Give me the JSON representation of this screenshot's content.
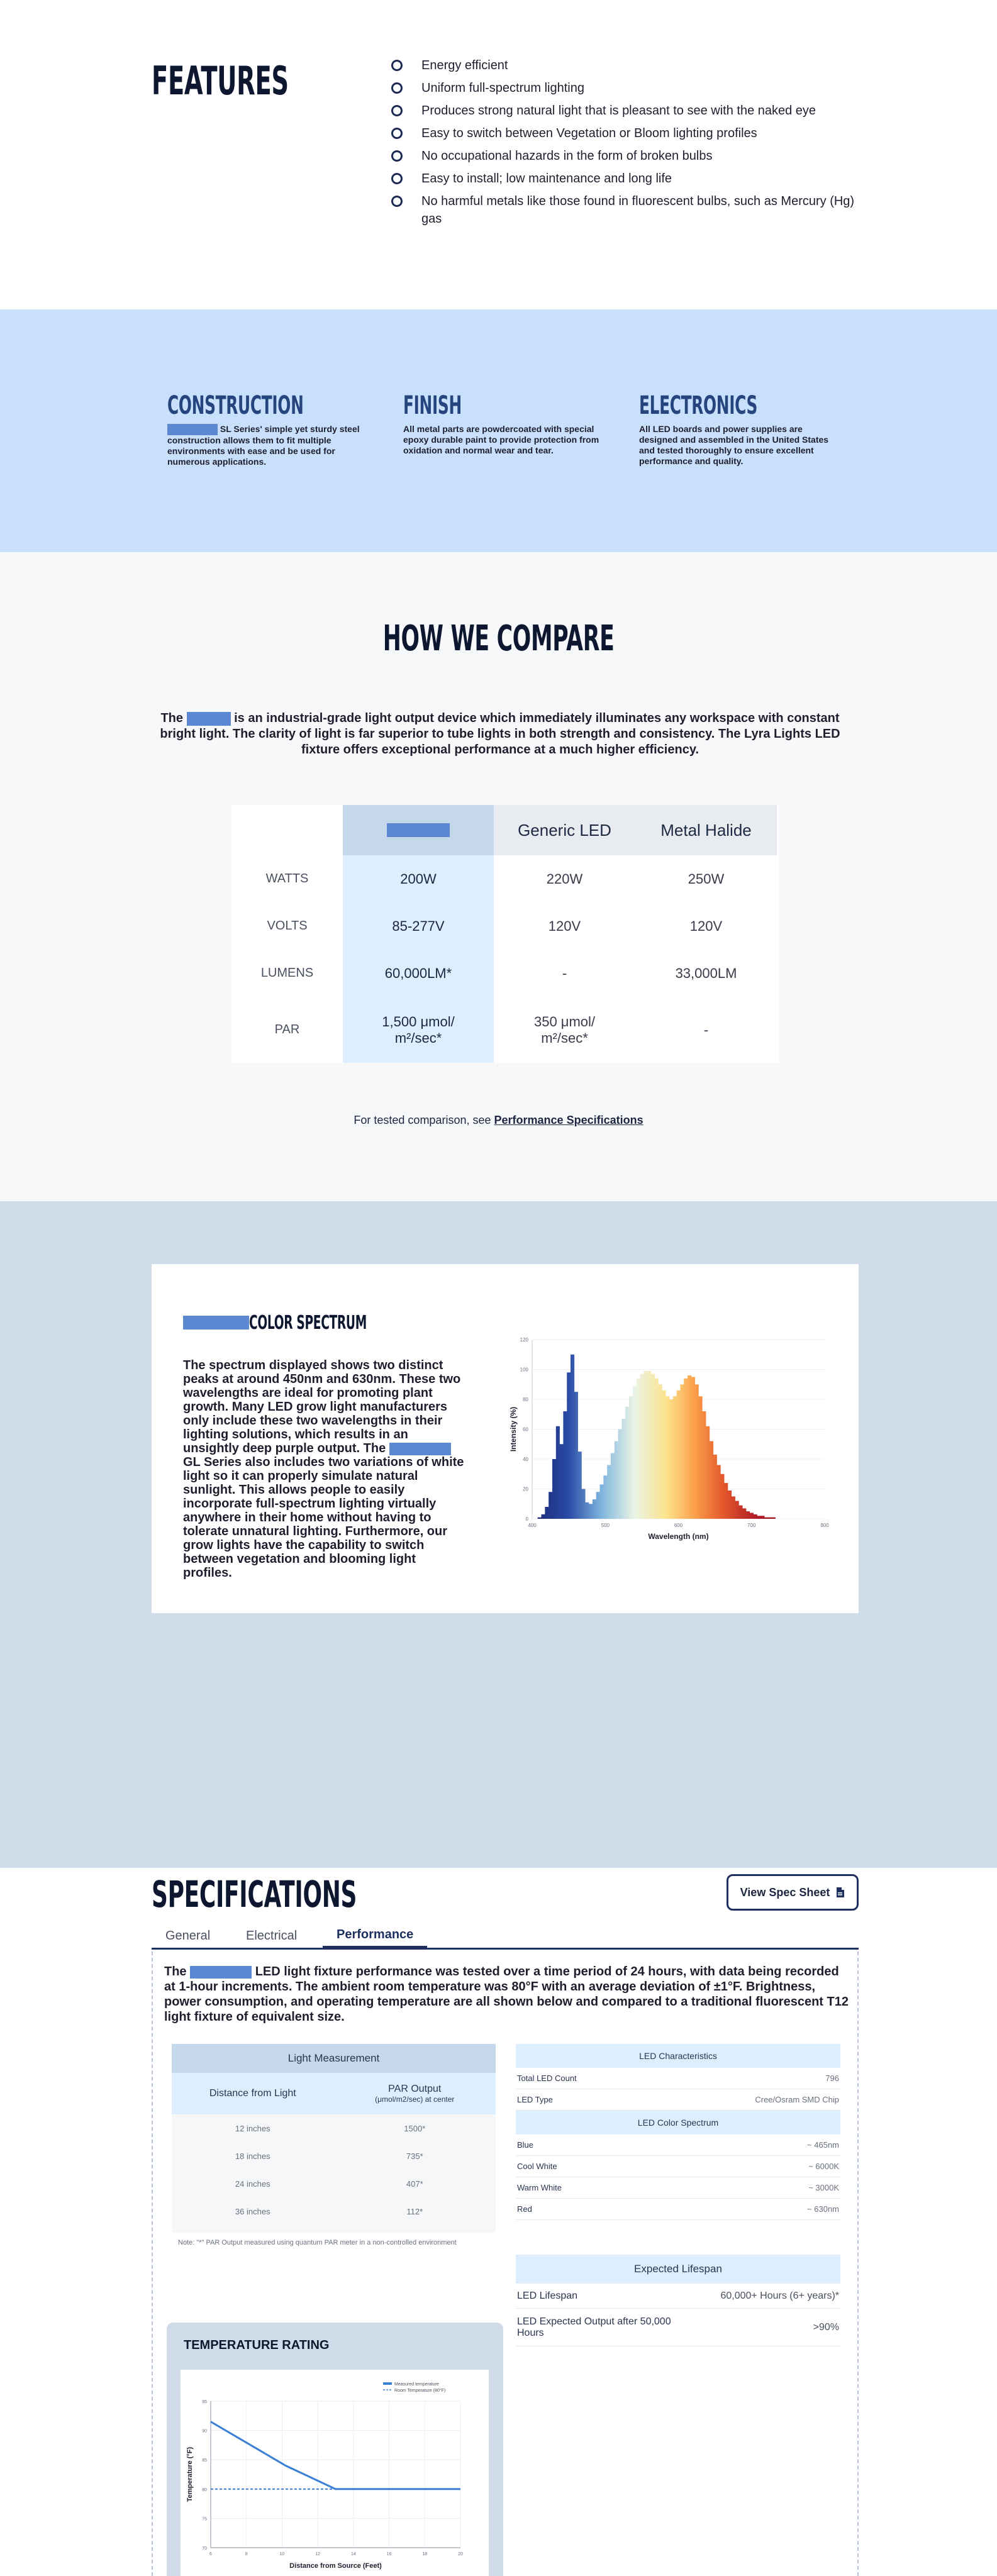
{
  "features": {
    "title": "FEATURES",
    "items": [
      "Energy efficient",
      "Uniform full-spectrum lighting",
      "Produces strong natural light that is pleasant to see with the naked eye",
      "Easy to switch between Vegetation or Bloom lighting profiles",
      "No occupational hazards in the form of broken bulbs",
      "Easy to install; low maintenance and long life",
      "No harmful metals like those found in fluorescent bulbs, such as Mercury (Hg) gas"
    ]
  },
  "details": {
    "construction": {
      "title": "CONSTRUCTION",
      "text": "SL Series' simple yet sturdy steel construction allows them to fit multiple environments with ease and be used for numerous applications."
    },
    "finish": {
      "title": "FINISH",
      "text": "All metal parts are powdercoated with special epoxy durable paint to provide protection from oxidation and normal wear and tear."
    },
    "electronics": {
      "title": "ELECTRONICS",
      "text": "All LED boards and power supplies are designed and assembled in the United States and tested thoroughly to ensure excellent performance and quality."
    }
  },
  "compare": {
    "title": "HOW WE COMPARE",
    "intro_before": "The",
    "intro_after": "is an industrial-grade light output device which immediately illuminates any workspace with constant bright light. The clarity of light is far superior to tube lights in both strength and consistency. The Lyra Lights LED fixture offers exceptional performance at a much higher efficiency.",
    "columns": [
      "Generic LED",
      "Metal Halide"
    ],
    "rows": [
      {
        "label": "WATTS",
        "ours": "200W",
        "generic": "220W",
        "halide": "250W"
      },
      {
        "label": "VOLTS",
        "ours": "85-277V",
        "generic": "120V",
        "halide": "120V"
      },
      {
        "label": "LUMENS",
        "ours": "60,000LM*",
        "generic": "-",
        "halide": "33,000LM"
      },
      {
        "label": "PAR",
        "ours": "1,500 μmol/ m²/sec*",
        "generic": "350 μmol/ m²/sec*",
        "halide": "-"
      }
    ],
    "footnote_prefix": "For tested comparison, see",
    "footnote_link": "Performance Specifications"
  },
  "spectrum": {
    "title": "COLOR SPECTRUM",
    "text_part1": "The spectrum displayed shows two distinct peaks at around 450nm and 630nm. These two wavelengths are ideal for promoting plant growth. Many LED grow light manufacturers only include these two wavelengths in their lighting solutions, which results in an unsightly deep purple output. The",
    "text_part2": "GL Series also includes two variations of white light so it can properly simulate natural sunlight. This allows people to easily incorporate full-spectrum lighting virtually anywhere in their home without having to tolerate unnatural lighting. Furthermore, our grow lights have the capability to switch between vegetation and blooming light profiles.",
    "chart_data": {
      "type": "bar",
      "xlabel": "Wavelength (nm)",
      "ylabel": "Intensity (%)",
      "xlim": [
        400,
        800
      ],
      "ylim": [
        0,
        120
      ],
      "x_ticks": [
        "400",
        "500",
        "600",
        "700",
        "800"
      ],
      "y_ticks": [
        "0",
        "20",
        "40",
        "60",
        "80",
        "100",
        "120"
      ],
      "x": [
        405,
        410,
        415,
        420,
        425,
        430,
        435,
        440,
        445,
        450,
        455,
        460,
        465,
        470,
        475,
        480,
        485,
        490,
        495,
        500,
        505,
        510,
        515,
        520,
        525,
        530,
        535,
        540,
        545,
        550,
        555,
        560,
        565,
        570,
        575,
        580,
        585,
        590,
        595,
        600,
        605,
        610,
        615,
        620,
        625,
        630,
        635,
        640,
        645,
        650,
        655,
        660,
        665,
        670,
        675,
        680,
        685,
        690,
        695,
        700,
        705,
        710,
        715,
        720,
        725,
        730,
        735,
        740,
        745,
        750,
        755,
        760,
        765,
        770,
        775,
        780
      ],
      "values": [
        0,
        1,
        3,
        8,
        18,
        40,
        62,
        50,
        72,
        98,
        110,
        85,
        45,
        20,
        11,
        10,
        13,
        18,
        23,
        29,
        36,
        44,
        52,
        60,
        67,
        75,
        82,
        89,
        94,
        97,
        99,
        99,
        97,
        94,
        90,
        86,
        82,
        80,
        82,
        86,
        90,
        94,
        96,
        95,
        90,
        82,
        72,
        62,
        52,
        43,
        36,
        30,
        24,
        19,
        15,
        12,
        9,
        7,
        5,
        4,
        3,
        2,
        2,
        1,
        1,
        1,
        0,
        0,
        0,
        0,
        0,
        0,
        0,
        0,
        0,
        0
      ]
    }
  },
  "specs": {
    "title": "SPECIFICATIONS",
    "view_button": "View Spec Sheet",
    "tabs": [
      "General",
      "Electrical",
      "Performance"
    ],
    "intro_before": "The",
    "intro_after": "LED light fixture performance was tested over a time period of 24 hours, with data being recorded at 1-hour increments. The ambient room temperature was 80°F with an average deviation of ±1°F. Brightness, power consumption, and operating temperature are all shown below and compared to a traditional fluorescent T12 light fixture of equivalent size.",
    "light_measurement": {
      "title": "Light Measurement",
      "col1": "Distance from Light",
      "col2": "PAR Output",
      "col2_sub": "(μmol/m2/sec) at center",
      "rows": [
        {
          "distance": "12 inches",
          "par": "1500*"
        },
        {
          "distance": "18 inches",
          "par": "735*"
        },
        {
          "distance": "24 inches",
          "par": "407*"
        },
        {
          "distance": "36 inches",
          "par": "112*"
        }
      ],
      "note": "Note: \"*\" PAR Output measured using quantum PAR meter in a non-controlled environment"
    },
    "led_characteristics": {
      "title": "LED Characteristics",
      "rows": [
        {
          "label": "Total LED Count",
          "value": "796"
        },
        {
          "label": "LED Type",
          "value": "Cree/Osram SMD Chip"
        }
      ]
    },
    "led_color_spectrum": {
      "title": "LED Color Spectrum",
      "rows": [
        {
          "label": "Blue",
          "value": "~ 465nm"
        },
        {
          "label": "Cool White",
          "value": "~ 6000K"
        },
        {
          "label": "Warm White",
          "value": "~ 3000K"
        },
        {
          "label": "Red",
          "value": "~ 630nm"
        }
      ]
    },
    "lifespan": {
      "title": "Expected Lifespan",
      "rows": [
        {
          "label": "LED Lifespan",
          "value": "60,000+ Hours (6+ years)*"
        },
        {
          "label": "LED Expected Output after 50,000 Hours",
          "value": ">90%"
        }
      ]
    },
    "temperature": {
      "title": "TEMPERATURE RATING",
      "chart_data": {
        "type": "line",
        "xlabel": "Distance from Source (Feet)",
        "ylabel": "Temperature (°F)",
        "xlim": [
          0,
          20
        ],
        "ylim": [
          70,
          95
        ],
        "x_ticks": [
          "6",
          "8",
          "10",
          "12",
          "14",
          "16",
          "18",
          "20"
        ],
        "y_ticks": [
          "70",
          "75",
          "80",
          "85",
          "90",
          "95"
        ],
        "series": [
          {
            "name": "Measured temperature",
            "x": [
              0,
              2,
              4,
              6,
              8,
              10,
              12,
              14,
              16,
              18,
              20
            ],
            "values": [
              91.5,
              89,
              86.5,
              84,
              82,
              80,
              80,
              80,
              80,
              80,
              80
            ]
          },
          {
            "name": "Room Temperature (80°F)",
            "x": [
              0,
              20
            ],
            "values": [
              80,
              80
            ]
          }
        ]
      }
    }
  },
  "colors": {
    "accent": "#1c2f5e",
    "highlight": "#ddefff",
    "redaction": "#5b88d0",
    "band": "#c8e0fb"
  }
}
